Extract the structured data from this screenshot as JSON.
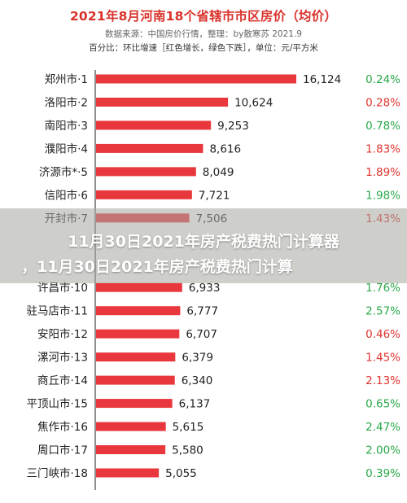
{
  "chart_data": {
    "type": "bar",
    "orientation": "horizontal",
    "title": "2021年8月河南18个省辖市市区房价（均价）",
    "source": "数据来源：中国房价行情，整理：by散寒苏  2021.9",
    "note": "百分比：环比增速［红色增长，绿色下跌］，单位：元/平方米",
    "unit": "元/平方米",
    "categories": [
      "郑州市·1",
      "洛阳市·2",
      "南阳市·3",
      "濮阳市·4",
      "济源市*·5",
      "信阳市·6",
      "开封市·7",
      "",
      "",
      "许昌市·10",
      "驻马店市·11",
      "安阳市·12",
      "漯河市·13",
      "商丘市·14",
      "平顶山市·15",
      "焦作市·16",
      "周口市·17",
      "三门峡市·18"
    ],
    "values": [
      16124,
      10624,
      9253,
      8616,
      8049,
      7721,
      7506,
      null,
      null,
      6933,
      6777,
      6707,
      6379,
      6340,
      6137,
      5615,
      5580,
      5055
    ],
    "value_labels": [
      "16,124",
      "10,624",
      "9,253",
      "8,616",
      "8,049",
      "7,721",
      "7,506",
      "",
      "",
      "6,933",
      "6,777",
      "6,707",
      "6,379",
      "6,340",
      "6,137",
      "5,615",
      "5,580",
      "5,055"
    ],
    "change_labels": [
      "0.24%",
      "0.28%",
      "0.78%",
      "1.83%",
      "1.89%",
      "1.98%",
      "1.43%",
      "",
      "",
      "1.76%",
      "2.57%",
      "0.46%",
      "1.45%",
      "2.13%",
      "0.65%",
      "2.47%",
      "2.00%",
      "0.39%"
    ],
    "change_direction": [
      "down",
      "up",
      "down",
      "up",
      "up",
      "down",
      "up",
      "",
      "",
      "down",
      "down",
      "up",
      "up",
      "up",
      "down",
      "down",
      "down",
      "down"
    ],
    "colors": {
      "bar": "#e8383d",
      "up": "#e0332e",
      "down": "#2aa84a",
      "title": "#d9322b"
    },
    "grid": false,
    "legend": "none"
  },
  "overlay": {
    "line1": "11月30日2021年房产税费热门计算器",
    "line2": "，11月30日2021年房产税费热门计算"
  }
}
